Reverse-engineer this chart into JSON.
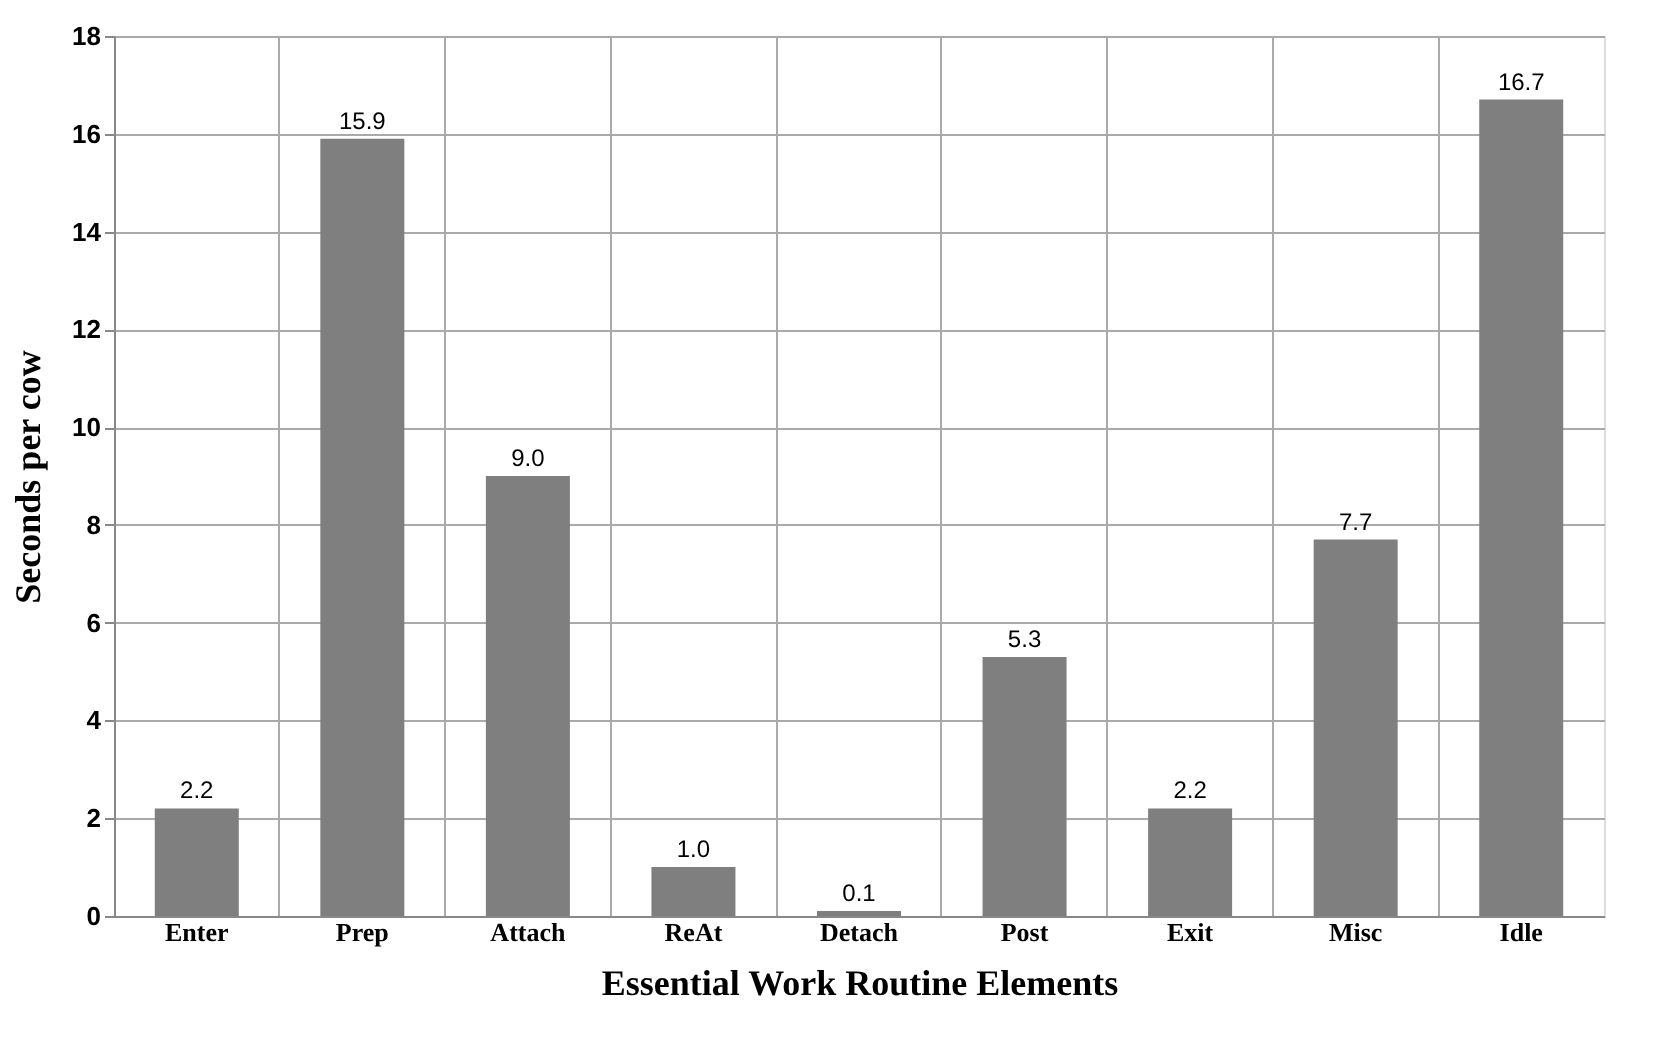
{
  "chart_data": {
    "type": "bar",
    "xlabel": "Essential Work Routine Elements",
    "ylabel": "Seconds per cow",
    "categories": [
      "Enter",
      "Prep",
      "Attach",
      "ReAt",
      "Detach",
      "Post",
      "Exit",
      "Misc",
      "Idle"
    ],
    "values": [
      2.2,
      15.9,
      9.0,
      1.0,
      0.1,
      5.3,
      2.2,
      7.7,
      16.7
    ],
    "color": "#7f7f7f",
    "ylim": [
      0,
      18
    ],
    "yticks": [
      0,
      2,
      4,
      6,
      8,
      10,
      12,
      14,
      16,
      18
    ],
    "grid": true,
    "value_labels": [
      "2.2",
      "15.9",
      "9.0",
      "1.0",
      "0.1",
      "5.3",
      "2.2",
      "7.7",
      "16.7"
    ]
  }
}
